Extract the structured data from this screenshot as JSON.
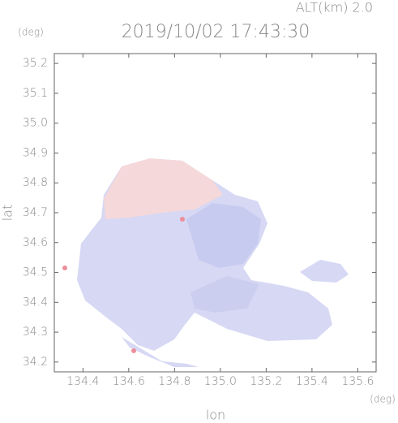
{
  "chart_data": {
    "type": "map",
    "title": "2019/10/02 17:43:30",
    "subtitle": "ALT(km) 2.0",
    "xlabel": "lon",
    "ylabel": "lat",
    "xunit": "(deg)",
    "yunit": "(deg)",
    "xlim": [
      134.275,
      135.68
    ],
    "ylim": [
      34.167,
      35.233
    ],
    "xticks": [
      134.4,
      134.6,
      134.8,
      {
        "value": 135.0,
        "label": "135.0"
      },
      135.2,
      135.4,
      135.6
    ],
    "yticks": [
      34.2,
      34.3,
      34.4,
      34.5,
      34.6,
      34.7,
      34.8,
      34.9,
      {
        "value": 35.0,
        "label": "35.0"
      },
      35.1,
      35.2
    ]
  }
}
